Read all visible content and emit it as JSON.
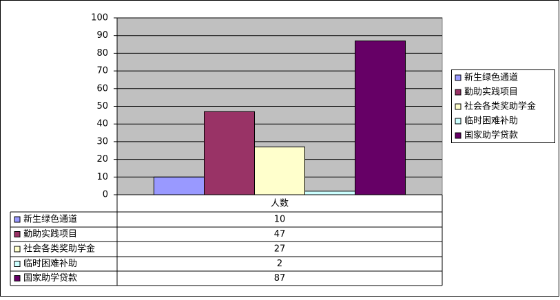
{
  "chart_data": {
    "type": "bar",
    "categories": [
      "人数"
    ],
    "series": [
      {
        "name": "新生绿色通道",
        "color": "#9999ff",
        "values": [
          10
        ]
      },
      {
        "name": "勤助实践项目",
        "color": "#993366",
        "values": [
          47
        ]
      },
      {
        "name": "社会各类奖助学金",
        "color": "#ffffcc",
        "values": [
          27
        ]
      },
      {
        "name": "临时困难补助",
        "color": "#ccffff",
        "values": [
          2
        ]
      },
      {
        "name": "国家助学贷款",
        "color": "#660066",
        "values": [
          87
        ]
      }
    ],
    "ylim": [
      0,
      100
    ],
    "yticks": [
      0,
      10,
      20,
      30,
      40,
      50,
      60,
      70,
      80,
      90,
      100
    ],
    "grid": true,
    "legend": "right",
    "data_table": true
  }
}
